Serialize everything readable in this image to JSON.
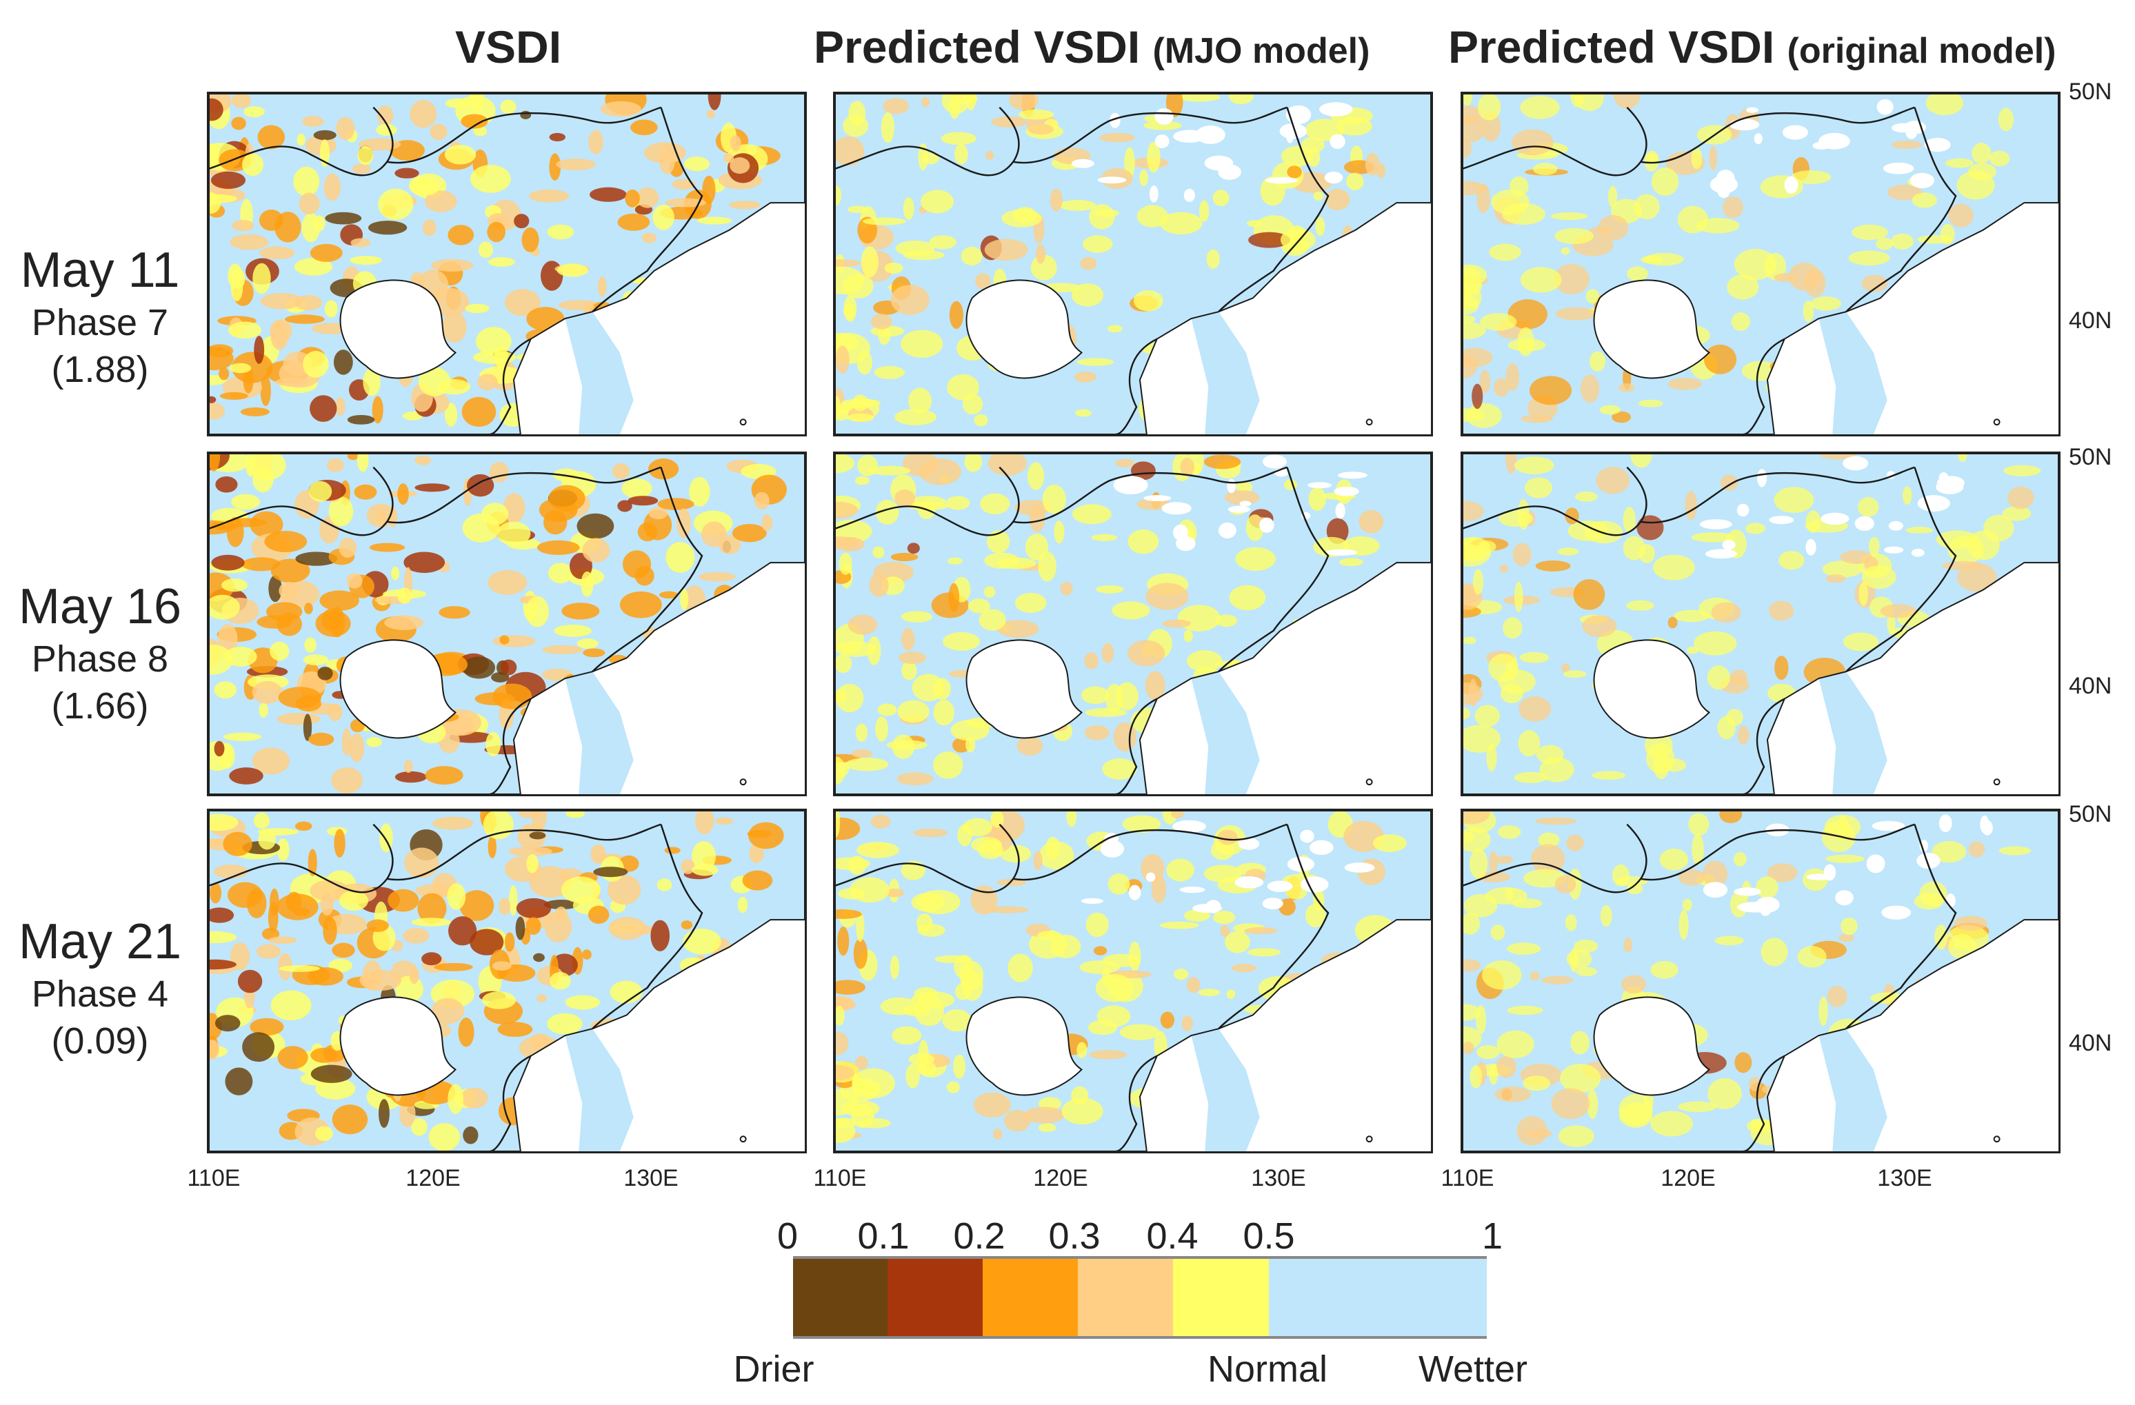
{
  "columns": [
    {
      "title": "VSDI",
      "sub": ""
    },
    {
      "title": "Predicted VSDI",
      "sub": "(MJO model)"
    },
    {
      "title": "Predicted VSDI",
      "sub": "(original model)"
    }
  ],
  "rows": [
    {
      "date": "May 11",
      "phase": "Phase 7",
      "amplitude": "(1.88)"
    },
    {
      "date": "May 16",
      "phase": "Phase 8",
      "amplitude": "(1.66)"
    },
    {
      "date": "May 21",
      "phase": "Phase 4",
      "amplitude": "(0.09)"
    }
  ],
  "lat_labels": [
    "50N",
    "40N"
  ],
  "lon_labels": [
    "110E",
    "120E",
    "130E"
  ],
  "colorbar": {
    "ticks": [
      "0",
      "0.1",
      "0.2",
      "0.3",
      "0.4",
      "0.5",
      "1"
    ],
    "classes": [
      {
        "from": 0,
        "to": 0.1,
        "color": "#6b4410"
      },
      {
        "from": 0.1,
        "to": 0.2,
        "color": "#a8360c"
      },
      {
        "from": 0.2,
        "to": 0.3,
        "color": "#ff9f0f"
      },
      {
        "from": 0.3,
        "to": 0.4,
        "color": "#ffcf85"
      },
      {
        "from": 0.4,
        "to": 0.5,
        "color": "#ffff66"
      },
      {
        "from": 0.5,
        "to": 1,
        "color": "#bfe6fb"
      }
    ],
    "labels": {
      "drier": "Drier",
      "normal": "Normal",
      "wetter": "Wetter"
    }
  },
  "colors": {
    "land": "#bfe6fb",
    "sea": "#ffffff",
    "border": "#1a1a1a"
  }
}
